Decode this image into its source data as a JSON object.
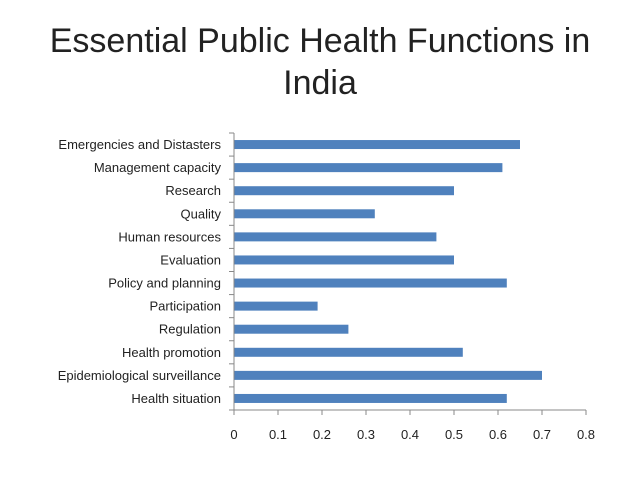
{
  "chart_data": {
    "type": "bar",
    "orientation": "horizontal",
    "title": "Essential Public Health Functions in India",
    "xlabel": "",
    "ylabel": "",
    "xlim": [
      0,
      0.8
    ],
    "x_ticks": [
      "0",
      "0.1",
      "0.2",
      "0.3",
      "0.4",
      "0.5",
      "0.6",
      "0.7",
      "0.8"
    ],
    "grid": false,
    "legend": "none",
    "bar_color": "#4f81bd",
    "categories": [
      "Emergencies and Distasters",
      "Management capacity",
      "Research",
      "Quality",
      "Human resources",
      "Evaluation",
      "Policy and planning",
      "Participation",
      "Regulation",
      "Health promotion",
      "Epidemiological surveillance",
      "Health situation"
    ],
    "values": [
      0.65,
      0.61,
      0.5,
      0.32,
      0.46,
      0.5,
      0.62,
      0.19,
      0.26,
      0.52,
      0.7,
      0.62
    ]
  }
}
